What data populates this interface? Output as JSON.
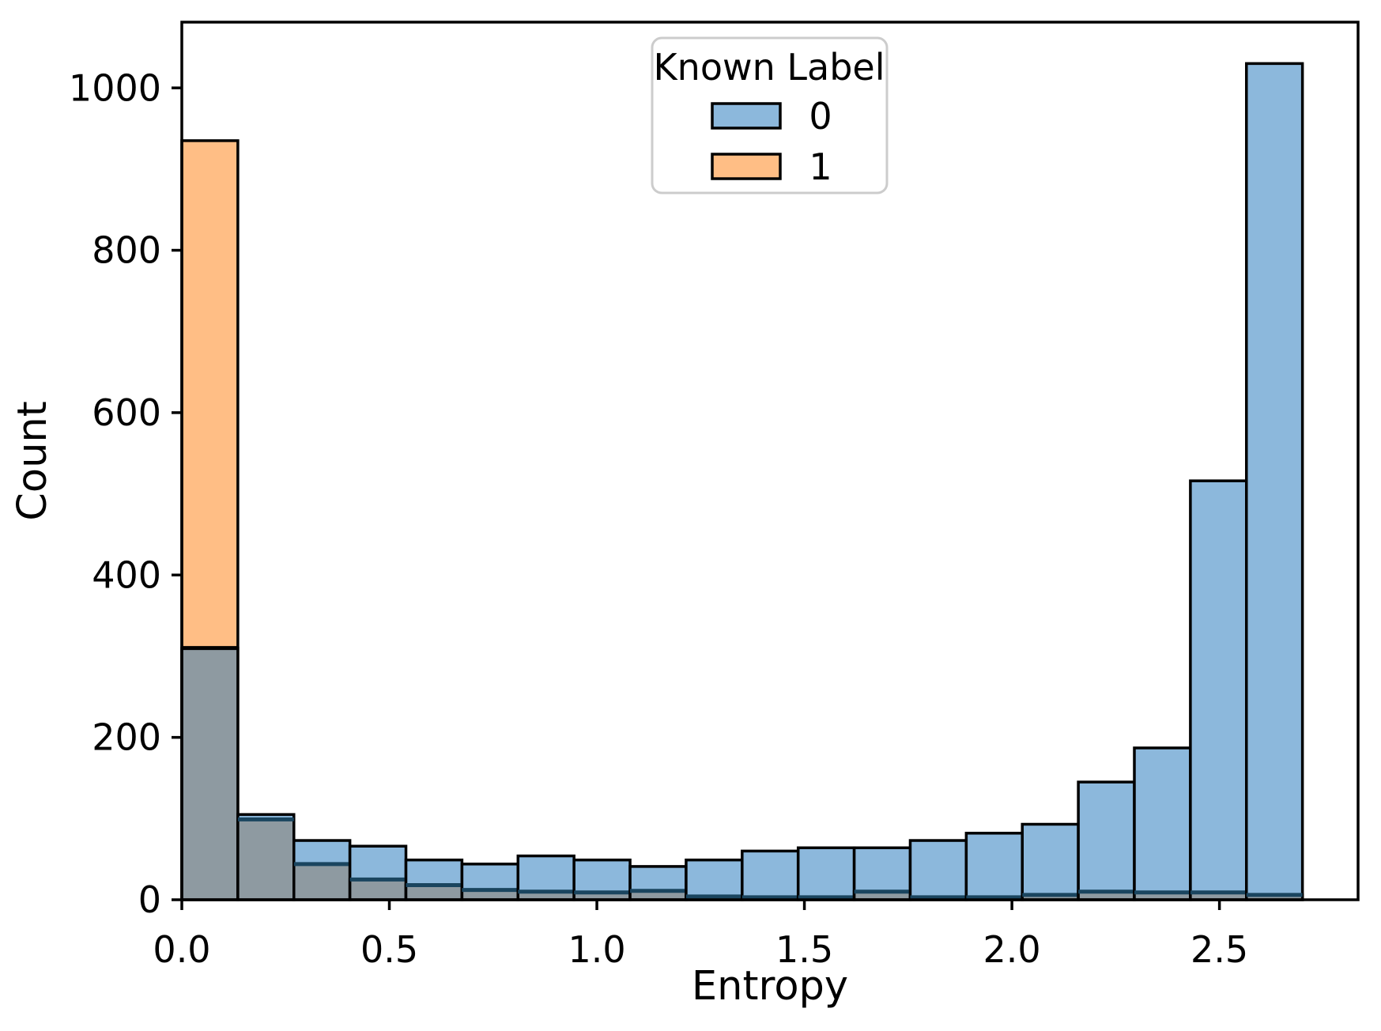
{
  "figure": {
    "background": "#ffffff"
  },
  "chart_data": {
    "type": "bar",
    "subtype": "layered-histogram",
    "title": "",
    "xlabel": "Entropy",
    "ylabel": "Count",
    "xlim": [
      0,
      2.834
    ],
    "ylim": [
      0,
      1081
    ],
    "xticks": [
      0.0,
      0.5,
      1.0,
      1.5,
      2.0,
      2.5
    ],
    "xtick_labels": [
      "0.0",
      "0.5",
      "1.0",
      "1.5",
      "2.0",
      "2.5"
    ],
    "yticks": [
      0,
      200,
      400,
      600,
      800,
      1000
    ],
    "ytick_labels": [
      "0",
      "200",
      "400",
      "600",
      "800",
      "1000"
    ],
    "grid": false,
    "bin_start": 0,
    "bin_width": 0.135,
    "categories": [
      0.0,
      0.135,
      0.27,
      0.405,
      0.54,
      0.675,
      0.81,
      0.945,
      1.08,
      1.215,
      1.35,
      1.485,
      1.62,
      1.755,
      1.89,
      2.025,
      2.16,
      2.295,
      2.43,
      2.565
    ],
    "series": [
      {
        "name": "0",
        "color": "#8cb8dc",
        "values": [
          310,
          105,
          73,
          66,
          49,
          44,
          54,
          49,
          41,
          49,
          60,
          64,
          64,
          73,
          82,
          93,
          145,
          187,
          516,
          1030
        ]
      },
      {
        "name": "1",
        "color": "#ffbe85",
        "values": [
          935,
          99,
          44,
          25,
          18,
          12,
          10,
          9,
          11,
          4,
          3,
          3,
          10,
          3,
          3,
          6,
          10,
          9,
          9,
          6
        ]
      }
    ],
    "overlap_color": "#8e9aa1",
    "bar_edge_color": "#000000",
    "overlap_divider_color": "#1a455f",
    "legend": {
      "title": "Known Label",
      "position": "upper center",
      "entries": [
        {
          "label": "0",
          "color": "#8cb8dc"
        },
        {
          "label": "1",
          "color": "#ffbe85"
        }
      ]
    }
  }
}
